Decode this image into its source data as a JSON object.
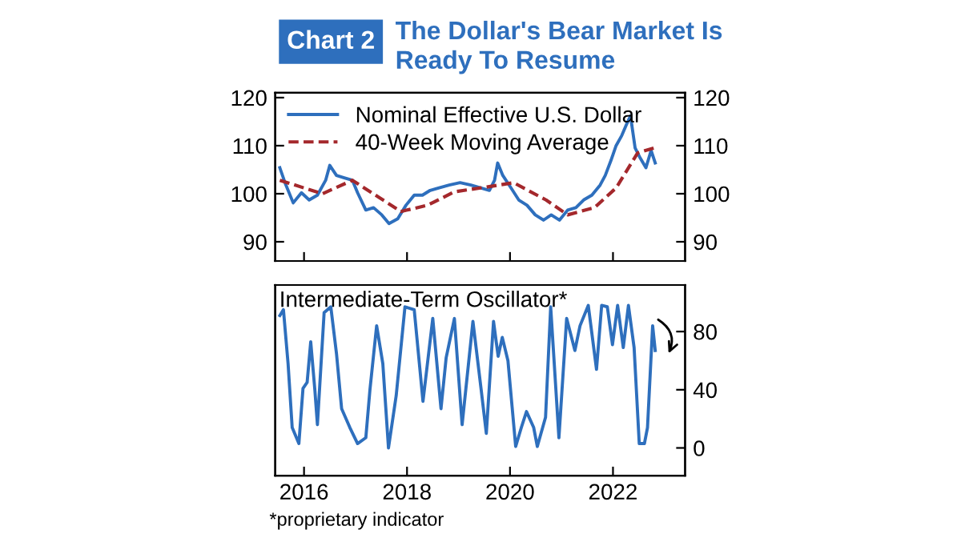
{
  "chart_data": [
    {
      "type": "line",
      "title": "The Dollar's Bear Market Is\nReady To Resume",
      "annotations": [
        "Chart 2"
      ],
      "legend": "top left",
      "tick_labels": "y",
      "grid": false,
      "xlim": [
        2015.44,
        2023.4
      ],
      "xticks": [
        2016,
        2018,
        2020,
        2022
      ],
      "ylim": [
        86,
        121
      ],
      "yticks": [
        90,
        100,
        110,
        120
      ],
      "y2lim": [
        86,
        121
      ],
      "y2ticks": [
        90,
        100,
        110,
        120
      ],
      "series": [
        {
          "name": "Nominal Effective U.S. Dollar",
          "color": "#2e6fbd",
          "line_style": "solid",
          "x": [
            2015.53,
            2015.63,
            2015.79,
            2015.95,
            2016.1,
            2016.26,
            2016.42,
            2016.5,
            2016.63,
            2016.78,
            2016.94,
            2017.04,
            2017.2,
            2017.35,
            2017.51,
            2017.65,
            2017.82,
            2017.98,
            2018.14,
            2018.3,
            2018.45,
            2018.61,
            2018.82,
            2019.03,
            2019.24,
            2019.44,
            2019.6,
            2019.7,
            2019.76,
            2019.86,
            2020.02,
            2020.17,
            2020.33,
            2020.49,
            2020.65,
            2020.8,
            2020.96,
            2021.12,
            2021.28,
            2021.43,
            2021.59,
            2021.75,
            2021.85,
            2021.96,
            2022.06,
            2022.17,
            2022.27,
            2022.34,
            2022.43,
            2022.53,
            2022.64,
            2022.74,
            2022.82
          ],
          "values": [
            105.4,
            102.3,
            98.1,
            100.2,
            98.7,
            99.7,
            102.8,
            105.9,
            103.8,
            103.3,
            102.8,
            100.2,
            96.6,
            97.1,
            95.6,
            93.8,
            94.8,
            97.6,
            99.7,
            99.7,
            100.7,
            101.2,
            101.8,
            102.3,
            101.8,
            101.2,
            100.7,
            102.8,
            106.4,
            103.8,
            101.2,
            98.7,
            97.6,
            95.6,
            94.5,
            95.6,
            94.5,
            96.6,
            97.1,
            98.7,
            99.7,
            101.8,
            103.8,
            106.9,
            110.0,
            112.1,
            114.6,
            116.2,
            109.5,
            107.4,
            105.4,
            109.0,
            106.4
          ]
        },
        {
          "name": "40-Week Moving Average",
          "color": "#a4282c",
          "line_style": "dashed",
          "x": [
            2015.53,
            2016.0,
            2016.36,
            2016.94,
            2017.46,
            2017.88,
            2018.4,
            2018.92,
            2019.55,
            2020.07,
            2020.7,
            2021.12,
            2021.64,
            2022.06,
            2022.48,
            2022.79
          ],
          "values": [
            102.8,
            101.2,
            100.0,
            102.8,
            99.2,
            96.3,
            97.6,
            100.4,
            101.4,
            102.3,
            98.7,
            95.6,
            97.1,
            101.2,
            108.5,
            109.5
          ]
        }
      ]
    },
    {
      "type": "line",
      "title": "Intermediate-Term Oscillator*",
      "annotations": [
        "*proprietary indicator"
      ],
      "legend": false,
      "grid": false,
      "xlim": [
        2015.44,
        2023.4
      ],
      "xticks": [
        2016,
        2018,
        2020,
        2022
      ],
      "y2lim": [
        -19,
        112
      ],
      "y2ticks": [
        0,
        40,
        80
      ],
      "series": [
        {
          "color": "#2e6fbd",
          "axis": "y2",
          "x": [
            2015.53,
            2015.6,
            2015.69,
            2015.77,
            2015.9,
            2015.98,
            2016.06,
            2016.13,
            2016.21,
            2016.26,
            2016.39,
            2016.52,
            2016.63,
            2016.73,
            2016.89,
            2017.04,
            2017.2,
            2017.28,
            2017.41,
            2017.53,
            2017.64,
            2017.79,
            2017.96,
            2018.14,
            2018.31,
            2018.5,
            2018.66,
            2018.76,
            2018.92,
            2019.07,
            2019.28,
            2019.44,
            2019.54,
            2019.68,
            2019.77,
            2019.85,
            2019.96,
            2020.11,
            2020.22,
            2020.32,
            2020.46,
            2020.53,
            2020.69,
            2020.79,
            2020.95,
            2021.1,
            2021.26,
            2021.36,
            2021.52,
            2021.68,
            2021.78,
            2021.89,
            2021.99,
            2022.09,
            2022.2,
            2022.3,
            2022.41,
            2022.51,
            2022.61,
            2022.67,
            2022.77,
            2022.82
          ],
          "values": [
            91,
            95,
            58,
            14,
            3,
            41,
            45,
            73,
            40,
            16,
            93,
            97,
            65,
            27,
            14,
            3,
            7,
            40,
            84,
            58,
            0,
            36,
            97,
            95,
            32,
            89,
            27,
            62,
            89,
            16,
            87,
            40,
            10,
            87,
            63,
            76,
            60,
            1,
            14,
            25,
            14,
            1,
            21,
            97,
            7,
            89,
            67,
            84,
            98,
            54,
            98,
            97,
            71,
            98,
            69,
            98,
            69,
            3,
            3,
            14,
            84,
            67
          ]
        }
      ]
    }
  ]
}
